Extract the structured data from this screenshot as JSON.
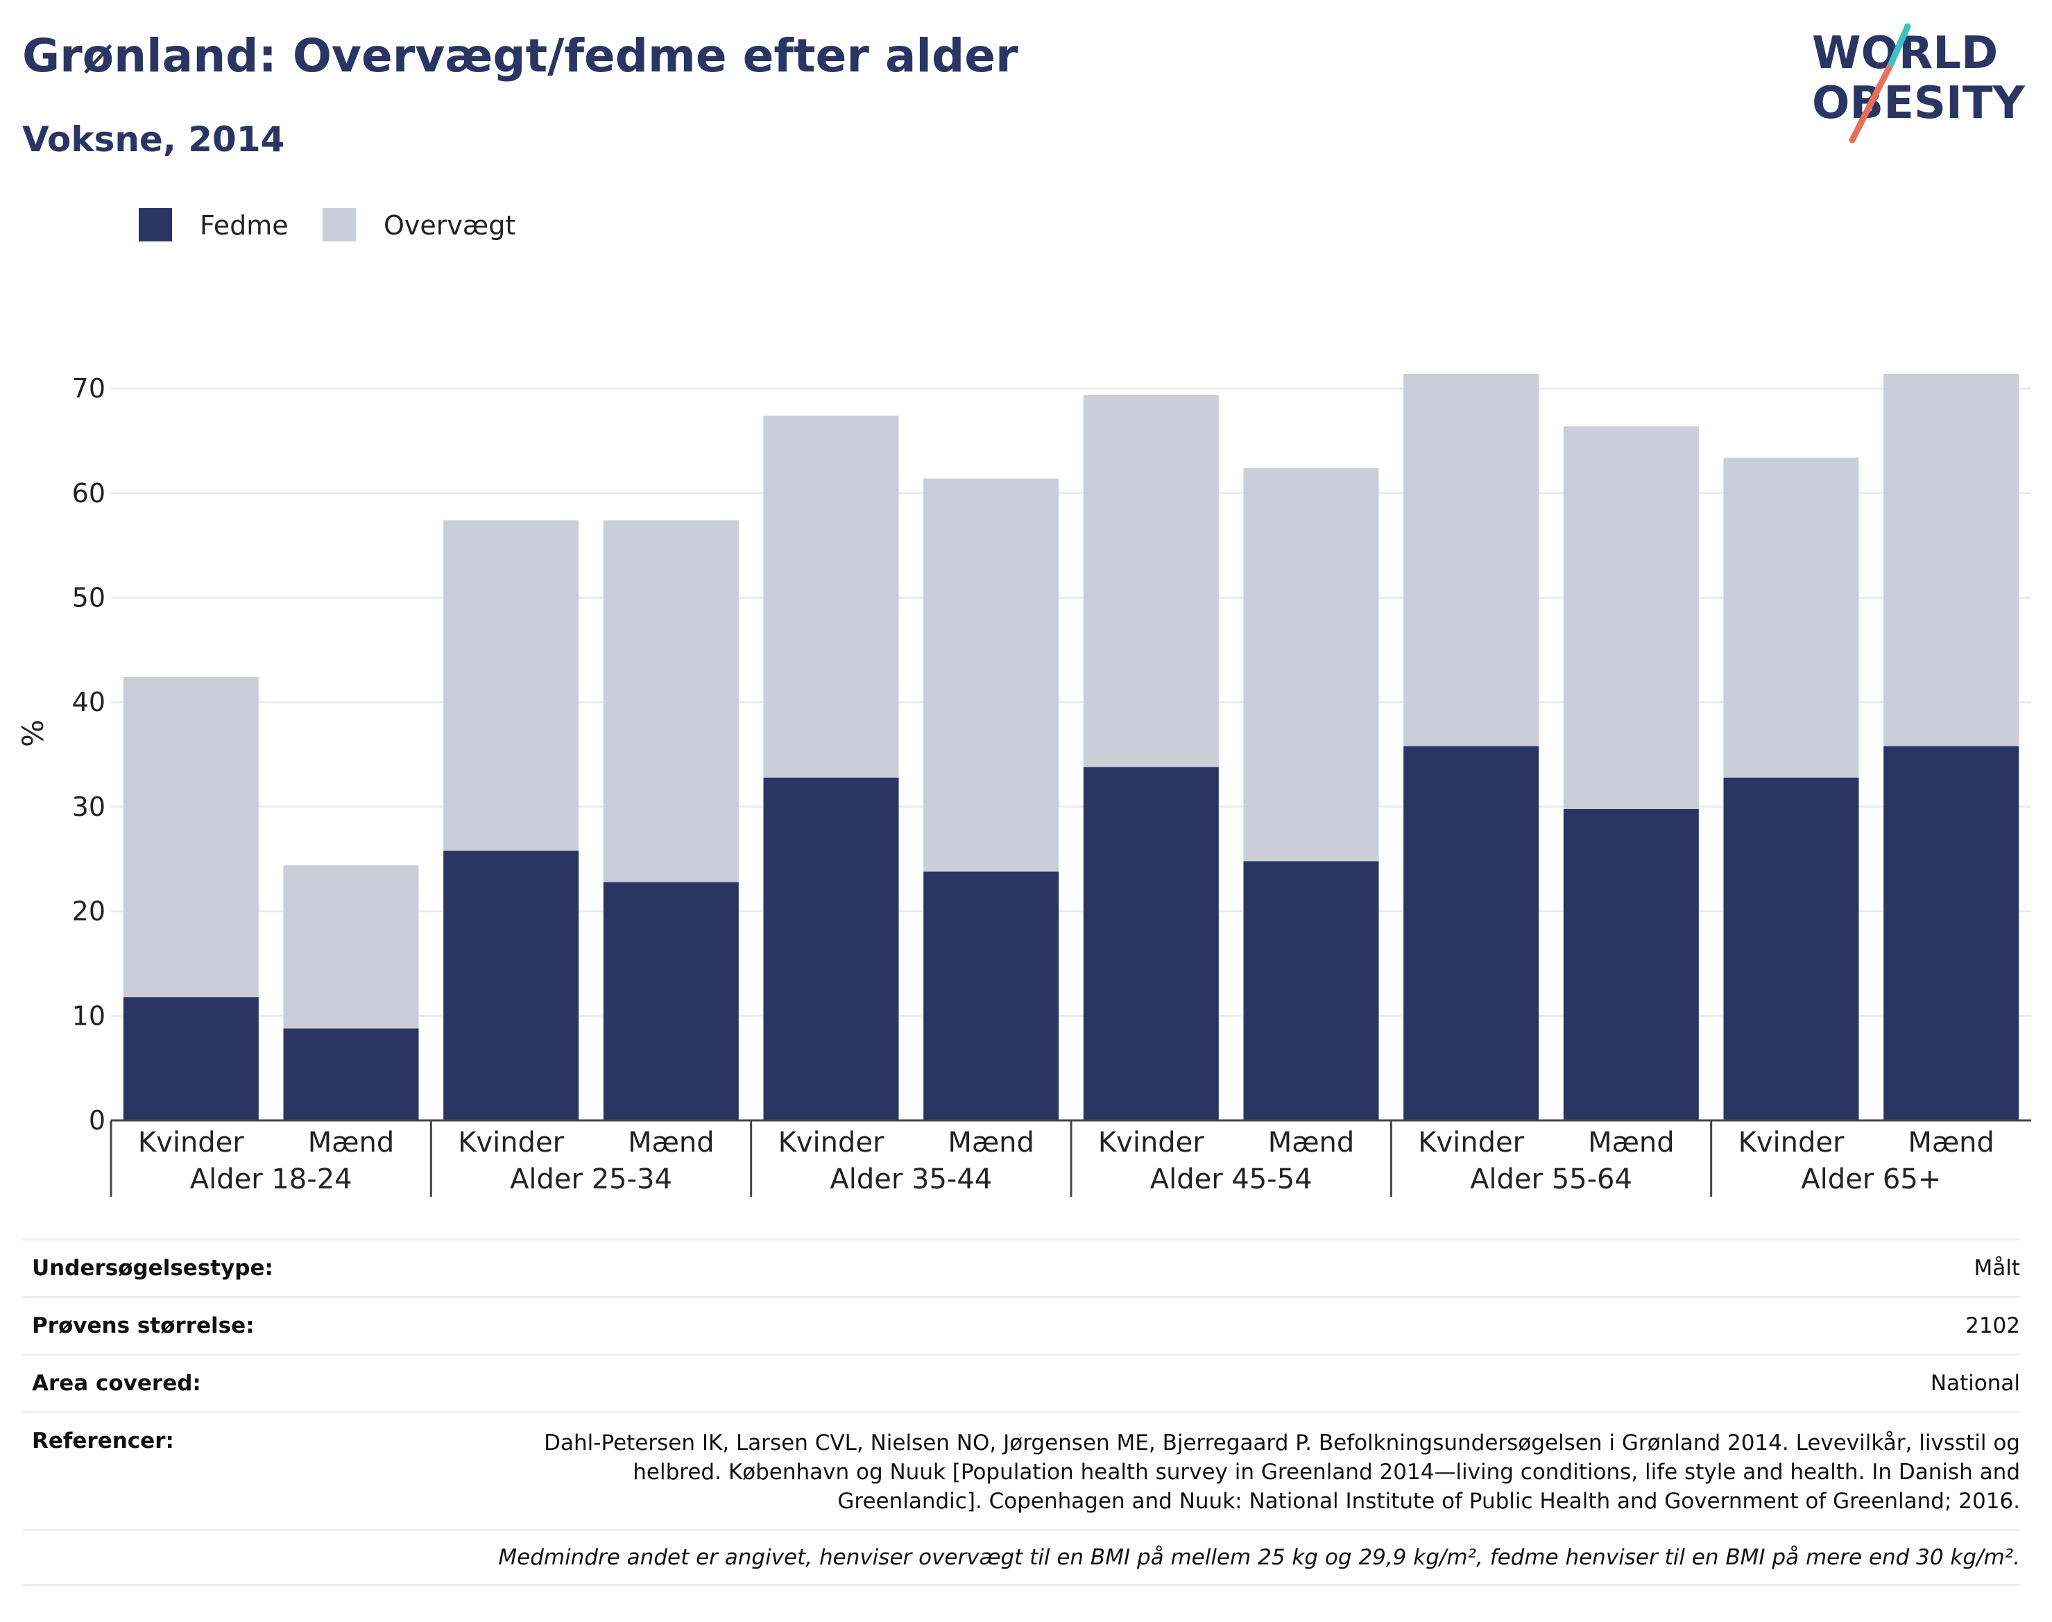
{
  "header": {
    "title": "Grønland: Overvægt/fedme efter alder",
    "subtitle": "Voksne, 2014"
  },
  "logo": {
    "line1": "WORLD",
    "line2": "OBESITY"
  },
  "colors": {
    "fedme": "#2a3563",
    "overvaegt": "#cbcdd9",
    "grid": "#e9ebf0",
    "axis": "#444444"
  },
  "chart_data": {
    "type": "bar",
    "stacked": true,
    "ylabel": "%",
    "ylim": [
      0,
      72
    ],
    "yticks": [
      0,
      10,
      20,
      30,
      40,
      50,
      60,
      70
    ],
    "grid": true,
    "legend_position": "top-left",
    "groups": [
      "Alder 18-24",
      "Alder 25-34",
      "Alder 35-44",
      "Alder 45-54",
      "Alder 55-64",
      "Alder 65+"
    ],
    "categories": [
      "Kvinder",
      "Mænd",
      "Kvinder",
      "Mænd",
      "Kvinder",
      "Mænd",
      "Kvinder",
      "Mænd",
      "Kvinder",
      "Mænd",
      "Kvinder",
      "Mænd"
    ],
    "series": [
      {
        "name": "Fedme",
        "values": [
          11.8,
          8.8,
          25.8,
          22.8,
          32.8,
          23.8,
          33.8,
          24.8,
          35.8,
          29.8,
          32.8,
          35.8
        ]
      },
      {
        "name": "Overvægt",
        "values": [
          30.6,
          15.6,
          31.6,
          34.6,
          34.6,
          37.6,
          35.6,
          37.6,
          35.6,
          36.6,
          30.6,
          35.6
        ]
      }
    ]
  },
  "meta": {
    "survey_label": "Undersøgelsestype:",
    "survey_value": "Målt",
    "sample_label": "Prøvens størrelse:",
    "sample_value": "2102",
    "area_label": "Area covered:",
    "area_value": "National",
    "ref_label": "Referencer:",
    "ref_value": "Dahl-Petersen IK, Larsen CVL, Nielsen NO, Jørgensen ME, Bjerregaard P. Befolkningsundersøgelsen i Grønland 2014. Levevilkår, livsstil og helbred. København og Nuuk [Population health survey in Greenland 2014—living conditions, life style and health. In Danish and Greenlandic]. Copenhagen and Nuuk: National Institute of Public Health and Government of Greenland; 2016.",
    "note": "Medmindre andet er angivet, henviser overvægt til en BMI på mellem 25 kg og 29,9 kg/m², fedme henviser til en BMI på mere end 30 kg/m²."
  }
}
